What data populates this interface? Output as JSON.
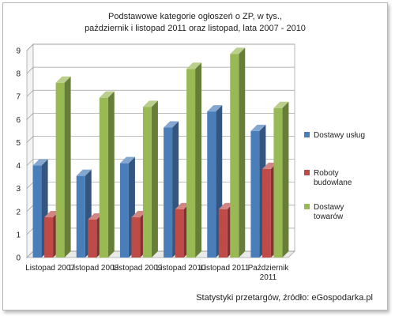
{
  "title_lines": [
    "Podstawowe kategorie ogłoszeń o ZP, w tys.,",
    "październik i listopad  2011  oraz listopad, lata 2007  - 2010"
  ],
  "source": "Statystyki przetargów, źródło: eGospodarka.pl",
  "chart_data": {
    "type": "bar",
    "style": "3d-clustered-column",
    "title": "Podstawowe kategorie ogłoszeń o ZP, w tys., październik i listopad  2011  oraz listopad, lata 2007  - 2010",
    "categories": [
      "Listopad 2007",
      "Listopad 2008",
      "Listopad 2009",
      "Listopad 2010",
      "Listopad 2011",
      "Październik 2011"
    ],
    "category_label_lines": [
      [
        "Listopad 2007"
      ],
      [
        "Listopad 2008"
      ],
      [
        "Listopad 2009"
      ],
      [
        "Listopad 2010"
      ],
      [
        "Listopad 2011"
      ],
      [
        "Październik",
        "2011"
      ]
    ],
    "series": [
      {
        "name": "Dostawy usług",
        "legend_lines": [
          "Dostawy usług"
        ],
        "color": "#4a7ebb",
        "values": [
          4.0,
          3.55,
          4.1,
          5.65,
          6.35,
          5.5
        ]
      },
      {
        "name": "Roboty budowlane",
        "legend_lines": [
          "Roboty",
          "budowlane"
        ],
        "color": "#be4b48",
        "values": [
          1.75,
          1.65,
          1.75,
          2.1,
          2.1,
          3.85
        ]
      },
      {
        "name": "Dostawy towarów",
        "legend_lines": [
          "Dostawy",
          "towarów"
        ],
        "color": "#98b954",
        "values": [
          7.6,
          6.95,
          6.55,
          8.2,
          8.85,
          6.5
        ]
      }
    ],
    "y_ticks": [
      0,
      1,
      2,
      3,
      4,
      5,
      6,
      7,
      8,
      9
    ],
    "ylim": [
      0,
      9
    ],
    "grid": "horizontal",
    "legend_position": "right",
    "xlabel": "",
    "ylabel": ""
  }
}
